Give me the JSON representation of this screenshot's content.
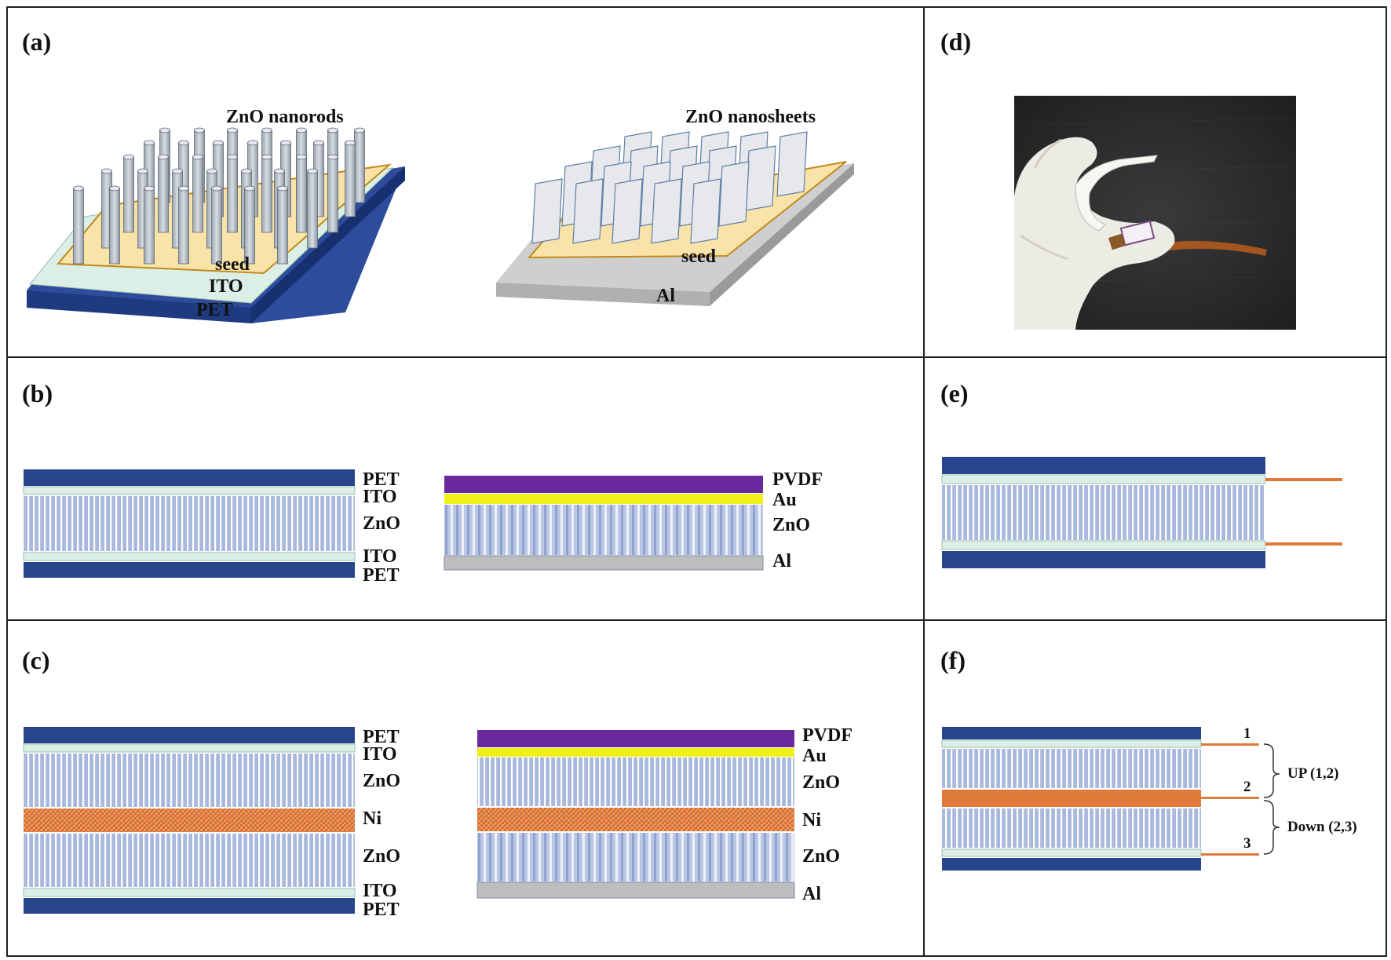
{
  "panels": {
    "a": {
      "letter": "(a)",
      "left": {
        "top_label": "ZnO nanorods",
        "layers": [
          "seed",
          "ITO",
          "PET"
        ]
      },
      "right": {
        "top_label": "ZnO nanosheets",
        "layers": [
          "seed",
          "Al"
        ]
      }
    },
    "b": {
      "letter": "(b)",
      "left_stack": [
        "PET",
        "ITO",
        "ZnO",
        "ITO",
        "PET"
      ],
      "right_stack": [
        "PVDF",
        "Au",
        "ZnO",
        "Al"
      ]
    },
    "c": {
      "letter": "(c)",
      "left_stack": [
        "PET",
        "ITO",
        "ZnO",
        "Ni",
        "ZnO",
        "ITO",
        "PET"
      ],
      "right_stack": [
        "PVDF",
        "Au",
        "ZnO",
        "Ni",
        "ZnO",
        "Al"
      ]
    },
    "d": {
      "letter": "(d)"
    },
    "e": {
      "letter": "(e)"
    },
    "f": {
      "letter": "(f)",
      "electrodes": [
        "1",
        "2",
        "3"
      ],
      "groups": [
        "UP (1,2)",
        "Down (2,3)"
      ]
    }
  },
  "colors": {
    "pet": "#27458c",
    "ito": "#dcefe6",
    "zno": "#a9b9dd",
    "zno_line": "#ffffff",
    "pvdf": "#6a2a9d",
    "au": "#f0ef1a",
    "al": "#bdbdbd",
    "ni": "#e07a3a",
    "electrode": "#e07a3a",
    "seed": "#fae3a8"
  }
}
